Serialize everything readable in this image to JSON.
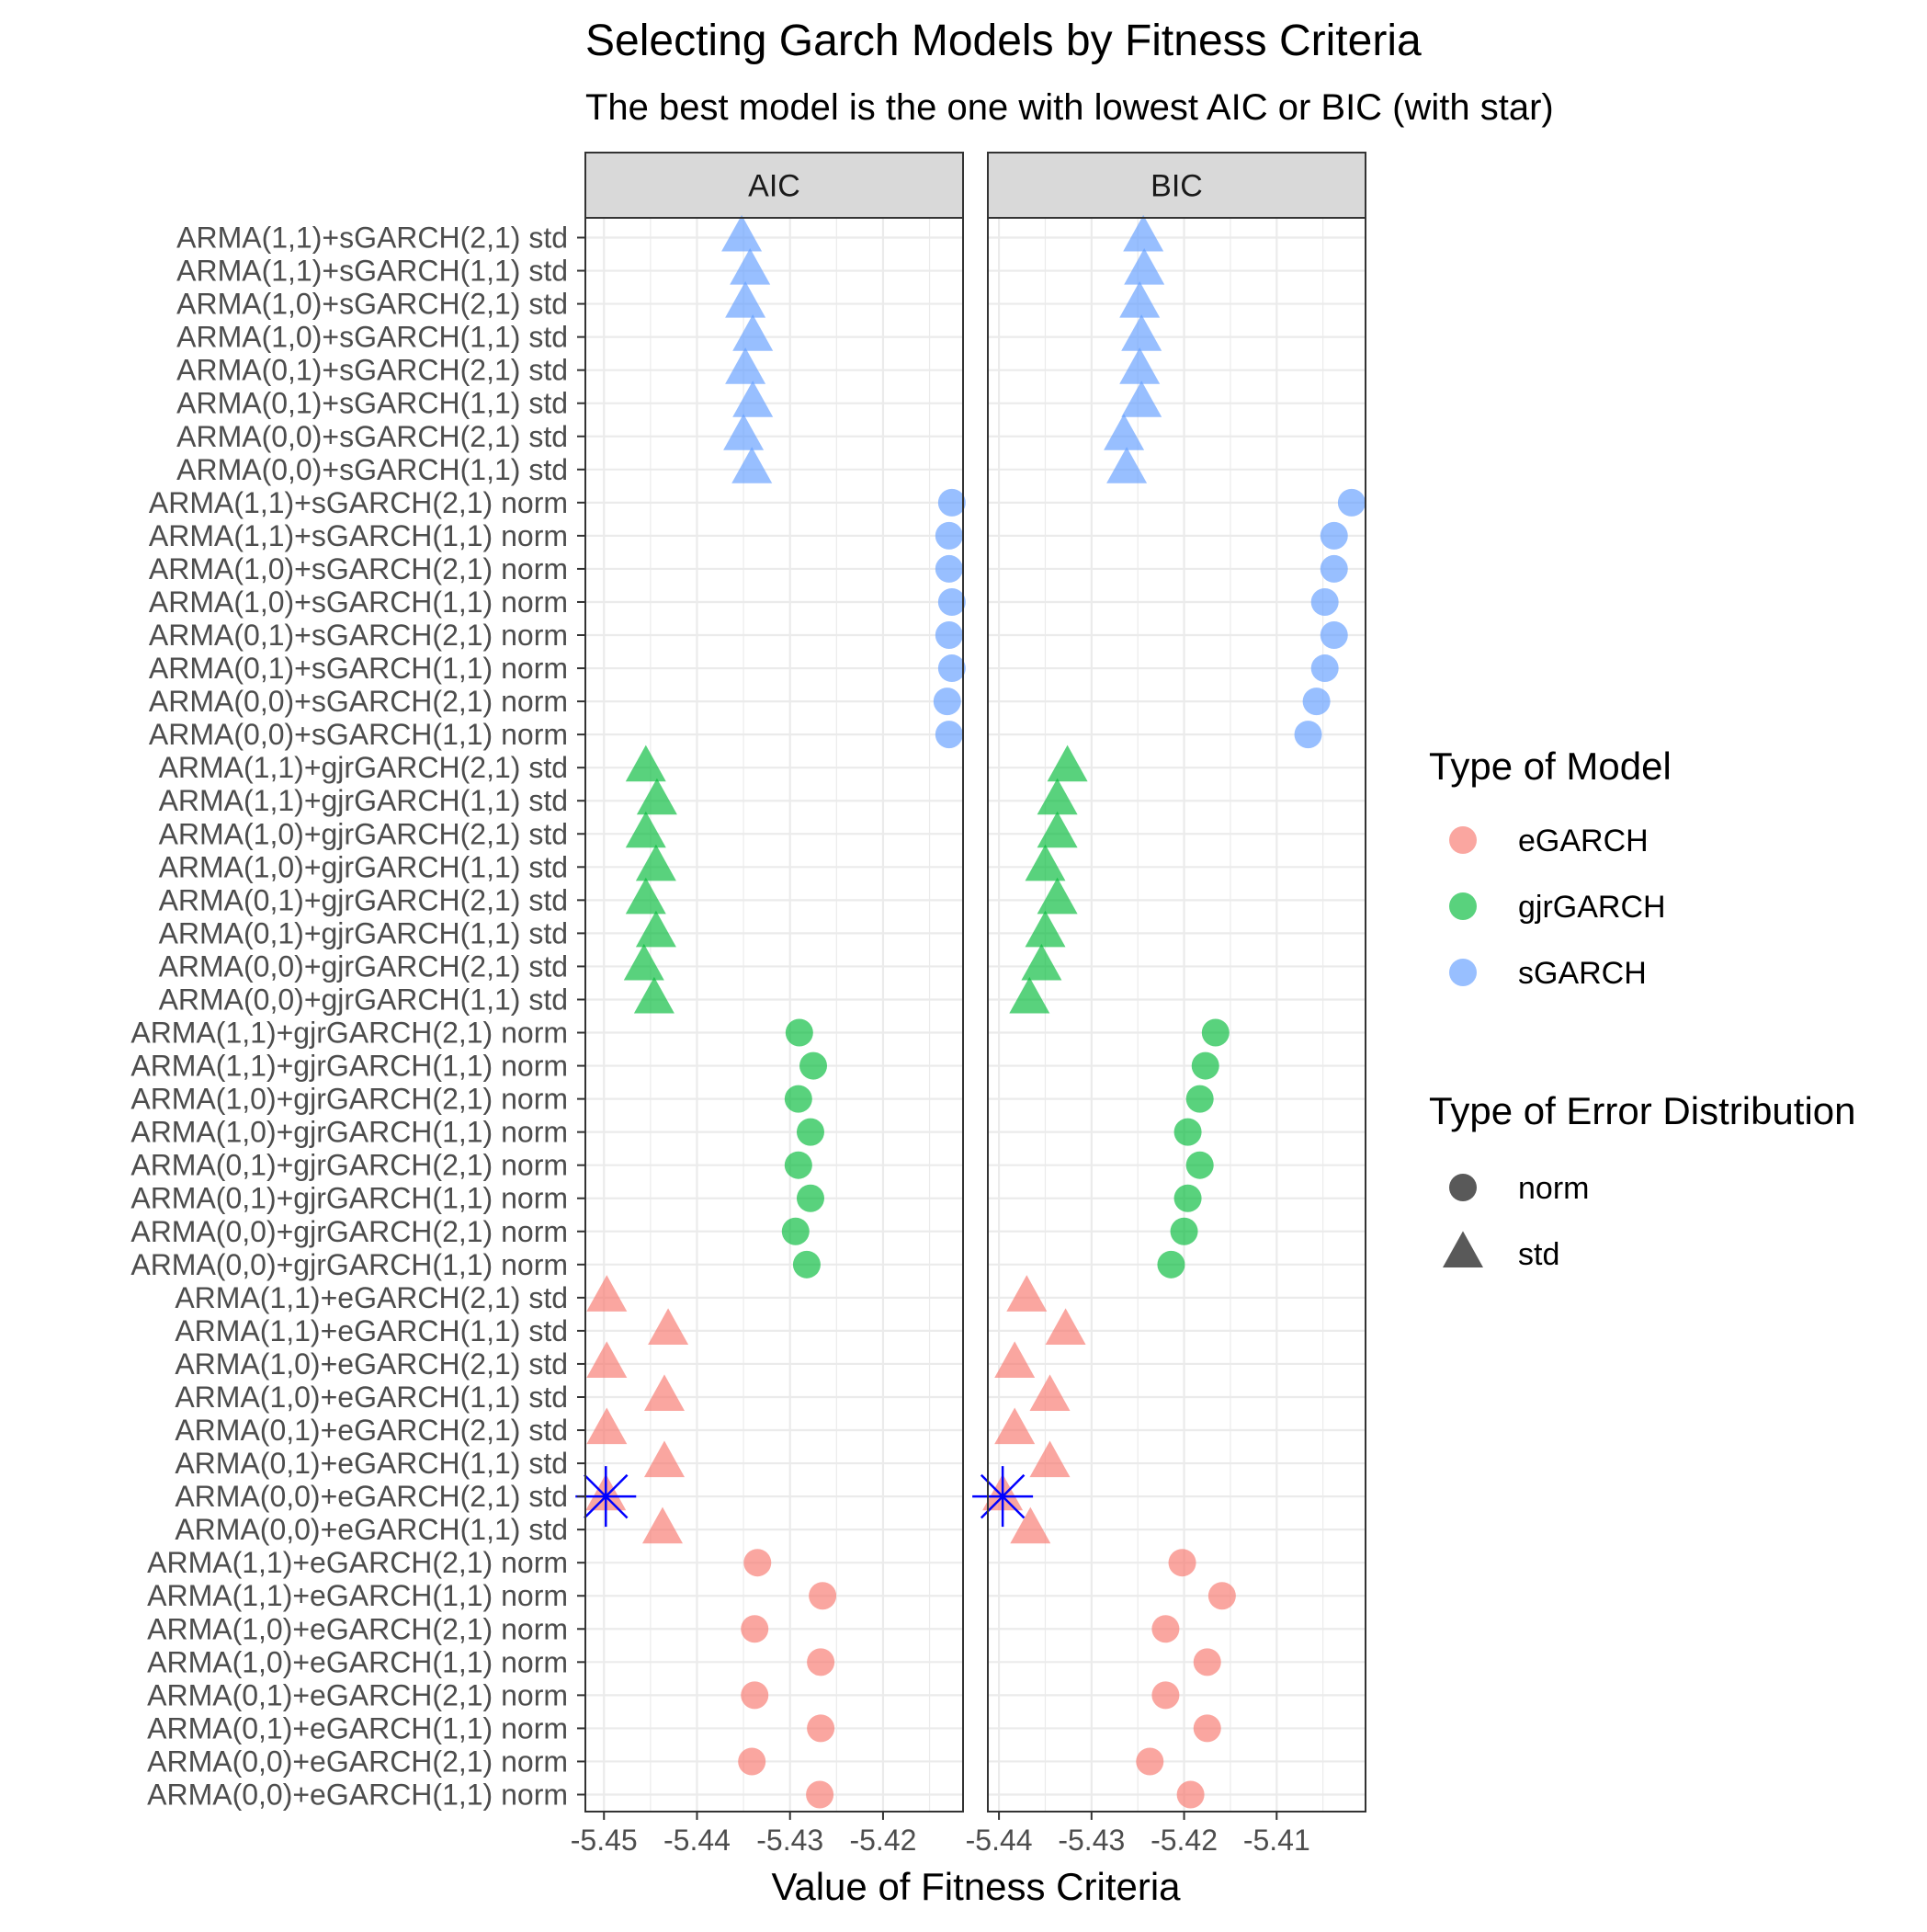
{
  "chart_data": {
    "type": "scatter",
    "title": "Selecting Garch Models by Fitness Criteria",
    "subtitle": "The best model is the one with lowest AIC or BIC (with star)",
    "xlabel": "Value of Fitness Criteria",
    "ylabel": "",
    "grid": true,
    "facets": [
      {
        "name": "AIC",
        "xlim": [
          -5.452,
          -5.4114
        ],
        "xticks": [
          -5.45,
          -5.44,
          -5.43,
          -5.42
        ],
        "xtick_labels": [
          "-5.45",
          "-5.44",
          "-5.43",
          "-5.42"
        ]
      },
      {
        "name": "BIC",
        "xlim": [
          -5.4412,
          -5.4004
        ],
        "xticks": [
          -5.44,
          -5.43,
          -5.42,
          -5.41
        ],
        "xtick_labels": [
          "-5.44",
          "-5.43",
          "-5.42",
          "-5.41"
        ]
      }
    ],
    "categories": [
      "ARMA(1,1)+sGARCH(2,1) std",
      "ARMA(1,1)+sGARCH(1,1) std",
      "ARMA(1,0)+sGARCH(2,1) std",
      "ARMA(1,0)+sGARCH(1,1) std",
      "ARMA(0,1)+sGARCH(2,1) std",
      "ARMA(0,1)+sGARCH(1,1) std",
      "ARMA(0,0)+sGARCH(2,1) std",
      "ARMA(0,0)+sGARCH(1,1) std",
      "ARMA(1,1)+sGARCH(2,1) norm",
      "ARMA(1,1)+sGARCH(1,1) norm",
      "ARMA(1,0)+sGARCH(2,1) norm",
      "ARMA(1,0)+sGARCH(1,1) norm",
      "ARMA(0,1)+sGARCH(2,1) norm",
      "ARMA(0,1)+sGARCH(1,1) norm",
      "ARMA(0,0)+sGARCH(2,1) norm",
      "ARMA(0,0)+sGARCH(1,1) norm",
      "ARMA(1,1)+gjrGARCH(2,1) std",
      "ARMA(1,1)+gjrGARCH(1,1) std",
      "ARMA(1,0)+gjrGARCH(2,1) std",
      "ARMA(1,0)+gjrGARCH(1,1) std",
      "ARMA(0,1)+gjrGARCH(2,1) std",
      "ARMA(0,1)+gjrGARCH(1,1) std",
      "ARMA(0,0)+gjrGARCH(2,1) std",
      "ARMA(0,0)+gjrGARCH(1,1) std",
      "ARMA(1,1)+gjrGARCH(2,1) norm",
      "ARMA(1,1)+gjrGARCH(1,1) norm",
      "ARMA(1,0)+gjrGARCH(2,1) norm",
      "ARMA(1,0)+gjrGARCH(1,1) norm",
      "ARMA(0,1)+gjrGARCH(2,1) norm",
      "ARMA(0,1)+gjrGARCH(1,1) norm",
      "ARMA(0,0)+gjrGARCH(2,1) norm",
      "ARMA(0,0)+gjrGARCH(1,1) norm",
      "ARMA(1,1)+eGARCH(2,1) std",
      "ARMA(1,1)+eGARCH(1,1) std",
      "ARMA(1,0)+eGARCH(2,1) std",
      "ARMA(1,0)+eGARCH(1,1) std",
      "ARMA(0,1)+eGARCH(2,1) std",
      "ARMA(0,1)+eGARCH(1,1) std",
      "ARMA(0,0)+eGARCH(2,1) std",
      "ARMA(0,0)+eGARCH(1,1) std",
      "ARMA(1,1)+eGARCH(2,1) norm",
      "ARMA(1,1)+eGARCH(1,1) norm",
      "ARMA(1,0)+eGARCH(2,1) norm",
      "ARMA(1,0)+eGARCH(1,1) norm",
      "ARMA(0,1)+eGARCH(2,1) norm",
      "ARMA(0,1)+eGARCH(1,1) norm",
      "ARMA(0,0)+eGARCH(2,1) norm",
      "ARMA(0,0)+eGARCH(1,1) norm"
    ],
    "model_type": [
      "sGARCH",
      "sGARCH",
      "sGARCH",
      "sGARCH",
      "sGARCH",
      "sGARCH",
      "sGARCH",
      "sGARCH",
      "sGARCH",
      "sGARCH",
      "sGARCH",
      "sGARCH",
      "sGARCH",
      "sGARCH",
      "sGARCH",
      "sGARCH",
      "gjrGARCH",
      "gjrGARCH",
      "gjrGARCH",
      "gjrGARCH",
      "gjrGARCH",
      "gjrGARCH",
      "gjrGARCH",
      "gjrGARCH",
      "gjrGARCH",
      "gjrGARCH",
      "gjrGARCH",
      "gjrGARCH",
      "gjrGARCH",
      "gjrGARCH",
      "gjrGARCH",
      "gjrGARCH",
      "eGARCH",
      "eGARCH",
      "eGARCH",
      "eGARCH",
      "eGARCH",
      "eGARCH",
      "eGARCH",
      "eGARCH",
      "eGARCH",
      "eGARCH",
      "eGARCH",
      "eGARCH",
      "eGARCH",
      "eGARCH",
      "eGARCH",
      "eGARCH"
    ],
    "error_dist": [
      "std",
      "std",
      "std",
      "std",
      "std",
      "std",
      "std",
      "std",
      "norm",
      "norm",
      "norm",
      "norm",
      "norm",
      "norm",
      "norm",
      "norm",
      "std",
      "std",
      "std",
      "std",
      "std",
      "std",
      "std",
      "std",
      "norm",
      "norm",
      "norm",
      "norm",
      "norm",
      "norm",
      "norm",
      "norm",
      "std",
      "std",
      "std",
      "std",
      "std",
      "std",
      "std",
      "std",
      "norm",
      "norm",
      "norm",
      "norm",
      "norm",
      "norm",
      "norm",
      "norm"
    ],
    "series": [
      {
        "name": "AIC",
        "values": [
          -5.4352,
          -5.4343,
          -5.4348,
          -5.434,
          -5.4348,
          -5.434,
          -5.435,
          -5.4341,
          -5.4126,
          -5.4129,
          -5.4129,
          -5.4126,
          -5.4129,
          -5.4126,
          -5.4131,
          -5.4129,
          -5.4455,
          -5.4443,
          -5.4455,
          -5.4444,
          -5.4455,
          -5.4444,
          -5.4457,
          -5.4446,
          -5.429,
          -5.4275,
          -5.4291,
          -5.4278,
          -5.4291,
          -5.4278,
          -5.4294,
          -5.4282,
          -5.4497,
          -5.4431,
          -5.4497,
          -5.4435,
          -5.4497,
          -5.4435,
          -5.4498,
          -5.4437,
          -5.4335,
          -5.4265,
          -5.4338,
          -5.4267,
          -5.4338,
          -5.4267,
          -5.4341,
          -5.4268
        ]
      },
      {
        "name": "BIC",
        "values": [
          -5.4244,
          -5.4243,
          -5.4248,
          -5.4246,
          -5.4248,
          -5.4246,
          -5.4265,
          -5.4262,
          -5.4019,
          -5.4038,
          -5.4038,
          -5.4048,
          -5.4038,
          -5.4048,
          -5.4057,
          -5.4066,
          -5.4326,
          -5.4337,
          -5.4337,
          -5.435,
          -5.4337,
          -5.435,
          -5.4354,
          -5.4367,
          -5.4166,
          -5.4177,
          -5.4183,
          -5.4196,
          -5.4183,
          -5.4196,
          -5.42,
          -5.4214,
          -5.437,
          -5.4328,
          -5.4383,
          -5.4345,
          -5.4383,
          -5.4345,
          -5.4396,
          -5.4366,
          -5.4202,
          -5.4159,
          -5.422,
          -5.4175,
          -5.422,
          -5.4175,
          -5.4237,
          -5.4193
        ]
      }
    ],
    "best_marker": {
      "category": "ARMA(0,0)+eGARCH(2,1) std",
      "AIC": -5.4498,
      "BIC": -5.4396,
      "color": "#0000ff"
    },
    "legend": {
      "placement": "right",
      "color_title": "Type of Model",
      "color_entries": [
        {
          "label": "eGARCH",
          "color": "#F8766D"
        },
        {
          "label": "gjrGARCH",
          "color": "#00BA38"
        },
        {
          "label": "sGARCH",
          "color": "#619CFF"
        }
      ],
      "shape_title": "Type of Error Distribution",
      "shape_entries": [
        {
          "label": "norm",
          "shape": "circle"
        },
        {
          "label": "std",
          "shape": "triangle"
        }
      ]
    }
  }
}
